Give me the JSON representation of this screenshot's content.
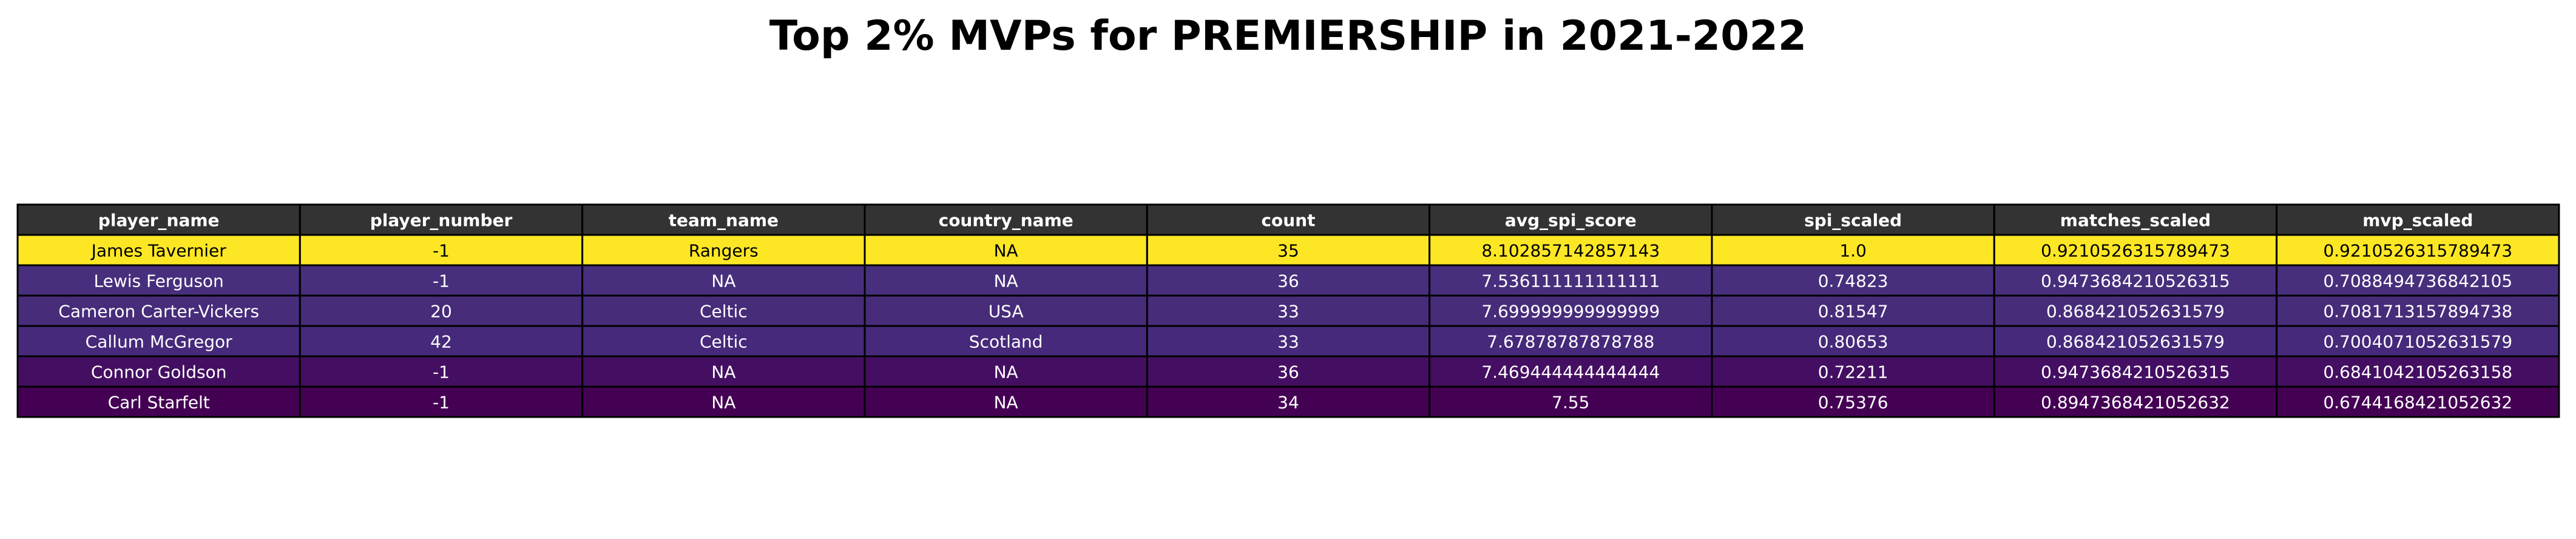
{
  "chart_data": {
    "type": "table",
    "title": "Top 2% MVPs for PREMIERSHIP in 2021-2022",
    "columns": [
      "player_name",
      "player_number",
      "team_name",
      "country_name",
      "count",
      "avg_spi_score",
      "spi_scaled",
      "matches_scaled",
      "mvp_scaled"
    ],
    "rows": [
      [
        "James Tavernier",
        "-1",
        "Rangers",
        "NA",
        "35",
        "8.102857142857143",
        "1.0",
        "0.9210526315789473",
        "0.9210526315789473"
      ],
      [
        "Lewis Ferguson",
        "-1",
        "NA",
        "NA",
        "36",
        "7.536111111111111",
        "0.74823",
        "0.9473684210526315",
        "0.7088494736842105"
      ],
      [
        "Cameron Carter-Vickers",
        "20",
        "Celtic",
        "USA",
        "33",
        "7.699999999999999",
        "0.81547",
        "0.868421052631579",
        "0.7081713157894738"
      ],
      [
        "Callum McGregor",
        "42",
        "Celtic",
        "Scotland",
        "33",
        "7.67878787878788",
        "0.80653",
        "0.868421052631579",
        "0.7004071052631579"
      ],
      [
        "Connor Goldson",
        "-1",
        "NA",
        "NA",
        "36",
        "7.469444444444444",
        "0.72211",
        "0.9473684210526315",
        "0.6841042105263158"
      ],
      [
        "Carl Starfelt",
        "-1",
        "NA",
        "NA",
        "34",
        "7.55",
        "0.75376",
        "0.8947368421052632",
        "0.6744168421052632"
      ]
    ],
    "header_color": "#333333",
    "header_text_color": "#ffffff",
    "row_colors": [
      "#fde725",
      "#472f7d",
      "#472c7a",
      "#46297a",
      "#440f62",
      "#440154"
    ],
    "row_text_colors": [
      "#000000",
      "#ffffff",
      "#ffffff",
      "#ffffff",
      "#ffffff",
      "#ffffff"
    ],
    "grid": true
  }
}
